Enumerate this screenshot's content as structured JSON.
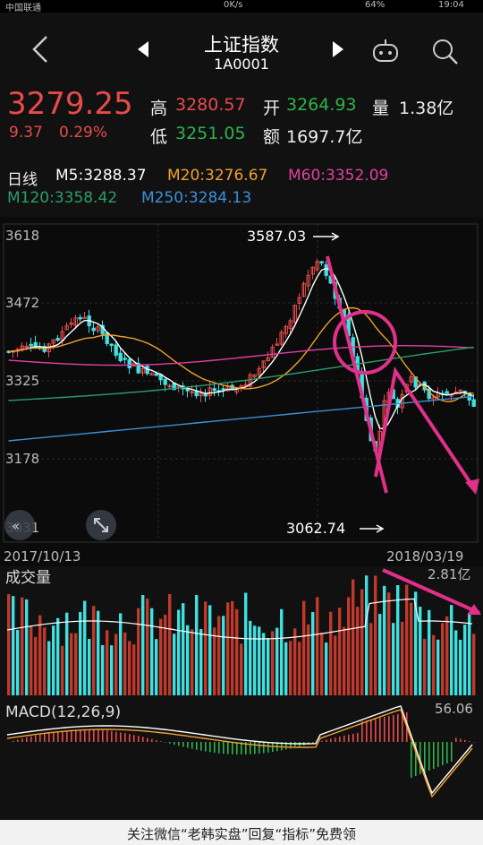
{
  "status": {
    "carrier": "中国联通",
    "net": "0K/s",
    "battery": "64%",
    "time": "19:04"
  },
  "header": {
    "title": "上证指数",
    "code": "1A0001",
    "back_icon": "back-arrow-icon",
    "prev_icon": "prev-triangle-icon",
    "next_icon": "next-triangle-icon",
    "robot_icon": "robot-icon",
    "search_icon": "search-icon"
  },
  "quote": {
    "price": "3279.25",
    "change": "9.37",
    "change_pct": "0.29%",
    "high_label": "高",
    "high": "3280.57",
    "open_label": "开",
    "open": "3264.93",
    "vol_label": "量",
    "vol": "1.38亿",
    "low_label": "低",
    "low": "3251.05",
    "amt_label": "额",
    "amt": "1697.7亿"
  },
  "ma_legend": {
    "period": "日线",
    "m5": "M5:3288.37",
    "m20": "M20:3276.67",
    "m60": "M60:3352.09",
    "m120": "M120:3358.42",
    "m250": "M250:3284.13"
  },
  "kchart": {
    "y_ticks": [
      "3618",
      "3472",
      "3325",
      "3178",
      "3031"
    ],
    "high_label": "3587.03",
    "low_label": "3062.74",
    "date_start": "2017/10/13",
    "date_end": "2018/03/19"
  },
  "volume": {
    "title": "成交量",
    "max": "2.81亿"
  },
  "macd": {
    "title": "MACD(12,26,9)",
    "max": "56.06"
  },
  "footer": {
    "text": "关注微信“老韩实盘”回复“指标”免费领"
  },
  "colors": {
    "up": "#e84b4b",
    "down": "#3fe0e0",
    "m5": "#ffffff",
    "m20": "#f0a030",
    "m60": "#e040a0",
    "m120": "#2a9d6a",
    "m250": "#3b8fd9",
    "annot": "#e0308a"
  }
}
